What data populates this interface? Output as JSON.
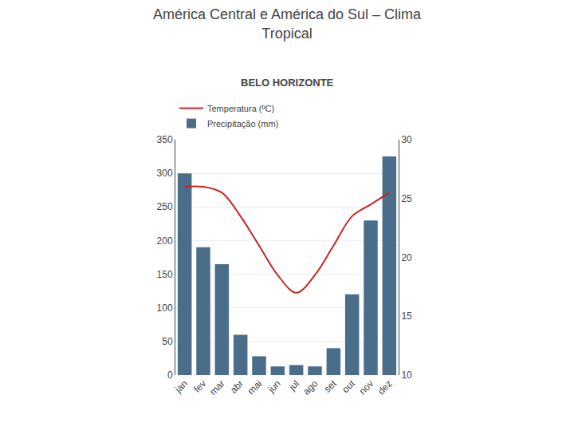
{
  "chart_data": {
    "type": "bar",
    "title": "América Central e América do Sul – Clima\nTropical",
    "subtitle": "BELO HORIZONTE",
    "categories": [
      "jan",
      "fev",
      "mar",
      "abr",
      "mai",
      "jun",
      "jul",
      "ago",
      "set",
      "out",
      "nov",
      "dez"
    ],
    "series": [
      {
        "name": "Precipitação (mm)",
        "type": "bar",
        "color": "#4a6e8a",
        "values": [
          300,
          190,
          165,
          60,
          28,
          13,
          15,
          13,
          40,
          120,
          230,
          325
        ]
      },
      {
        "name": "Temperatura (ºC)",
        "type": "line",
        "axis": "y2",
        "color": "#cc2222",
        "values": [
          26.0,
          26.0,
          25.5,
          23.5,
          21.0,
          18.5,
          17.0,
          18.5,
          21.0,
          23.5,
          24.5,
          25.5
        ]
      }
    ],
    "ylim": [
      0,
      350
    ],
    "yticks": [
      0,
      50,
      100,
      150,
      200,
      250,
      300,
      350
    ],
    "y2lim": [
      10,
      30
    ],
    "y2ticks": [
      10,
      15,
      20,
      25,
      30
    ],
    "grid": true,
    "legend": "top-left"
  }
}
